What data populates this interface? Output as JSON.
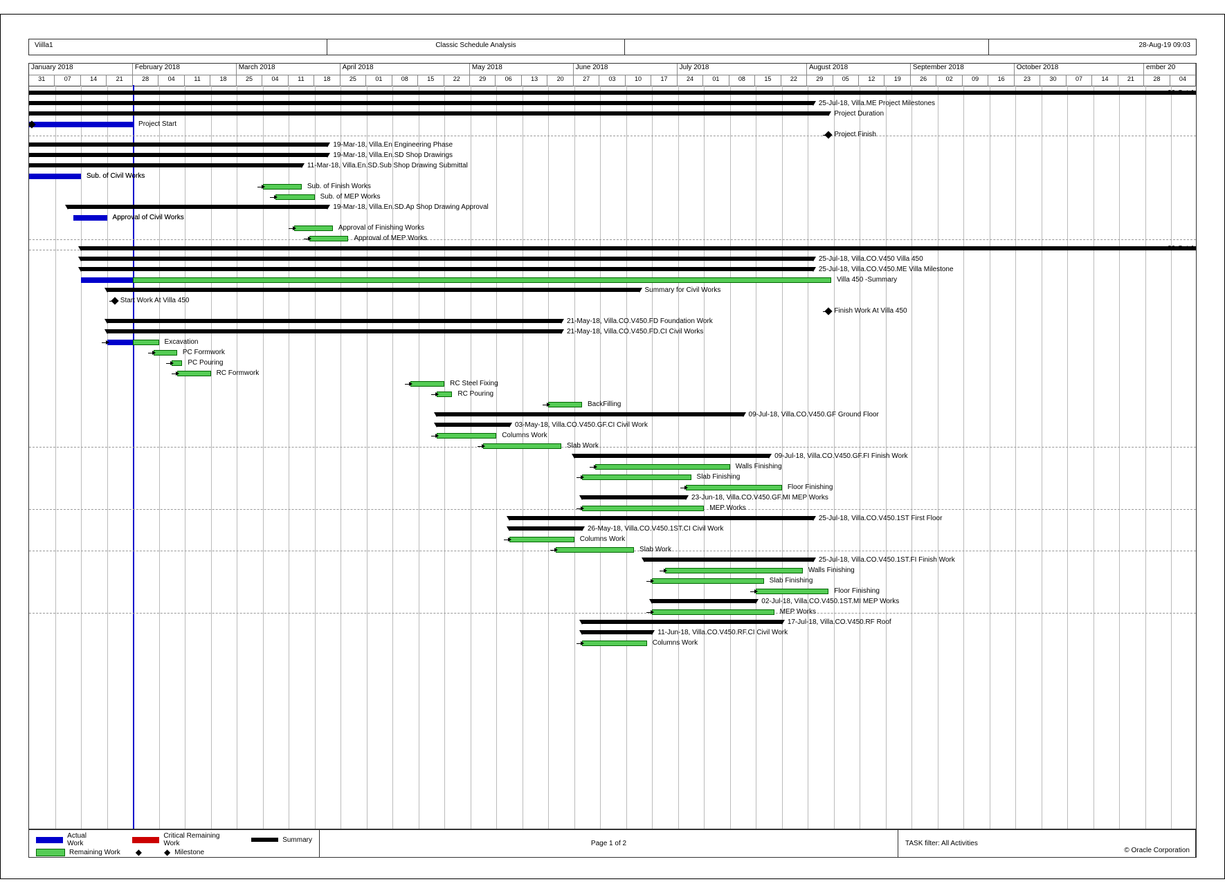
{
  "header": {
    "left": "Viilla1",
    "center": "Classic Schedule Analysis",
    "right": "28-Aug-19 09:03"
  },
  "footer": {
    "legend": {
      "actual": "Actual Work",
      "remaining": "Remaining Work",
      "critical": "Critical Remaining Work",
      "milestone": "Milestone",
      "summary": "Summary"
    },
    "page": "Page 1 of 2",
    "filter": "TASK filter: All Activities",
    "copyright": "© Oracle Corporation"
  },
  "colors": {
    "actual": "#0000cc",
    "remaining": "#55cc55",
    "critical": "#cc0000",
    "summary": "#000000",
    "grid": "#bbbbbb",
    "dash": "#999999",
    "status_line": "#0000cc",
    "border": "#333333",
    "bg": "#ffffff"
  },
  "timeline": {
    "start_week": 0,
    "total_weeks": 45,
    "status_week": 4,
    "months": [
      {
        "label": "January 2018",
        "weeks": 4
      },
      {
        "label": "February 2018",
        "weeks": 4
      },
      {
        "label": "March 2018",
        "weeks": 4
      },
      {
        "label": "April 2018",
        "weeks": 5
      },
      {
        "label": "May 2018",
        "weeks": 4
      },
      {
        "label": "June 2018",
        "weeks": 4
      },
      {
        "label": "July 2018",
        "weeks": 5
      },
      {
        "label": "August 2018",
        "weeks": 4
      },
      {
        "label": "September 2018",
        "weeks": 4
      },
      {
        "label": "October 2018",
        "weeks": 5
      },
      {
        "label": "ember 20",
        "weeks": 2
      }
    ],
    "days": [
      "31",
      "07",
      "14",
      "21",
      "28",
      "04",
      "11",
      "18",
      "25",
      "04",
      "11",
      "18",
      "25",
      "01",
      "08",
      "15",
      "22",
      "29",
      "06",
      "13",
      "20",
      "27",
      "03",
      "10",
      "17",
      "24",
      "01",
      "08",
      "15",
      "22",
      "29",
      "05",
      "12",
      "19",
      "26",
      "02",
      "09",
      "16",
      "23",
      "30",
      "07",
      "14",
      "21",
      "28",
      "04"
    ]
  },
  "tasks": [
    {
      "row": 0,
      "type": "summary",
      "start": 0,
      "end": 45,
      "dashed": true,
      "label_right": "30-Oct-1"
    },
    {
      "row": 1,
      "type": "summary",
      "start": 0,
      "end": 30.2,
      "label": "25-Jul-18, Villa.ME  Project Milestones"
    },
    {
      "row": 2,
      "type": "summary",
      "start": 0,
      "end": 30.8,
      "label": "Project Duration"
    },
    {
      "row": 3,
      "type": "actual",
      "start": 0,
      "end": 4,
      "label": "Project Start",
      "has_link_from": true,
      "ms_at": 0.1
    },
    {
      "row": 4,
      "type": "milestone",
      "start": 30.8,
      "label": "Project Finish",
      "dashed": true,
      "has_link": true
    },
    {
      "row": 5,
      "type": "summary",
      "start": 0,
      "end": 11.5,
      "label": "19-Mar-18, Villa.En  Engineering Phase"
    },
    {
      "row": 6,
      "type": "summary",
      "start": 0,
      "end": 11.5,
      "label": "19-Mar-18, Villa.En.SD  Shop Drawings"
    },
    {
      "row": 7,
      "type": "summary",
      "start": 0,
      "end": 10.5,
      "label": "11-Mar-18, Villa.En.SD.Sub  Shop Drawing Submittal"
    },
    {
      "row": 8,
      "type": "actual",
      "start": 0,
      "end": 2,
      "label": "Sub. of Civil Works",
      "hdr": true
    },
    {
      "row": 9,
      "type": "remaining",
      "start": 9,
      "end": 10.5,
      "label": "Sub. of Finish Works",
      "has_link": true
    },
    {
      "row": 10,
      "type": "remaining",
      "start": 9.5,
      "end": 11,
      "label": "Sub. of MEP Works",
      "has_link": true
    },
    {
      "row": 11,
      "type": "summary",
      "start": 1.5,
      "end": 11.5,
      "label": "19-Mar-18, Villa.En.SD.Ap  Shop Drawing Approval"
    },
    {
      "row": 12,
      "type": "actual",
      "start": 1.7,
      "end": 3,
      "label": "Approval of Civil Works",
      "hdr": true
    },
    {
      "row": 13,
      "type": "remaining",
      "start": 10.2,
      "end": 11.7,
      "label": "Approval of Finishing Works",
      "has_link": true
    },
    {
      "row": 14,
      "type": "remaining",
      "start": 10.8,
      "end": 12.3,
      "label": "Approval of MEP Works",
      "dashed": true,
      "has_link": true
    },
    {
      "row": 15,
      "type": "summary",
      "start": 2,
      "end": 45,
      "dashed": true,
      "label_right": "30-Oct-1"
    },
    {
      "row": 16,
      "type": "summary",
      "start": 2,
      "end": 30.2,
      "label": "25-Jul-18, Villa.CO.V450  Villa 450"
    },
    {
      "row": 17,
      "type": "summary",
      "start": 2,
      "end": 30.2,
      "label": "25-Jul-18, Villa.CO.V450.ME  Villa Milestone"
    },
    {
      "row": 18,
      "type": "remaining",
      "start": 4,
      "end": 30.9,
      "label": "Villa 450 -Summary",
      "actual_start": 2,
      "actual_end": 4
    },
    {
      "row": 19,
      "type": "summary",
      "start": 3,
      "end": 23.5,
      "label": "Summary for Civil Works"
    },
    {
      "row": 20,
      "type": "milestone",
      "start": 3.3,
      "label": "Start Work At Villa 450",
      "has_link": true
    },
    {
      "row": 21,
      "type": "milestone",
      "start": 30.8,
      "label": "Finish Work At Villa 450",
      "has_link": true
    },
    {
      "row": 22,
      "type": "summary",
      "start": 3,
      "end": 20.5,
      "label": "21-May-18, Villa.CO.V450.FD  Foundation Work"
    },
    {
      "row": 23,
      "type": "summary",
      "start": 3,
      "end": 20.5,
      "label": "21-May-18, Villa.CO.V450.FD.CI  Civil Works"
    },
    {
      "row": 24,
      "type": "remaining",
      "start": 4,
      "end": 5,
      "label": "Excavation",
      "actual_start": 3,
      "actual_end": 4,
      "has_link": true
    },
    {
      "row": 25,
      "type": "remaining",
      "start": 4.8,
      "end": 5.7,
      "label": "PC Formwork",
      "has_link": true
    },
    {
      "row": 26,
      "type": "remaining",
      "start": 5.5,
      "end": 5.9,
      "label": "PC Pouring",
      "has_link": true
    },
    {
      "row": 27,
      "type": "remaining",
      "start": 5.7,
      "end": 7,
      "label": "RC Formwork",
      "has_link": true
    },
    {
      "row": 28,
      "type": "remaining",
      "start": 14.7,
      "end": 16,
      "label": "RC Steel Fixing",
      "has_link": true
    },
    {
      "row": 29,
      "type": "remaining",
      "start": 15.7,
      "end": 16.3,
      "label": "RC Pouring",
      "has_link": true
    },
    {
      "row": 30,
      "type": "remaining",
      "start": 20,
      "end": 21.3,
      "label": "BackFilling",
      "has_link": true
    },
    {
      "row": 31,
      "type": "summary",
      "start": 15.7,
      "end": 27.5,
      "label": "09-Jul-18, Villa.CO.V450.GF  Ground Floor"
    },
    {
      "row": 32,
      "type": "summary",
      "start": 15.7,
      "end": 18.5,
      "label": "03-May-18, Villa.CO.V450.GF.CI  Civil Work"
    },
    {
      "row": 33,
      "type": "remaining",
      "start": 15.7,
      "end": 18,
      "label": "Columns Work",
      "has_link": true
    },
    {
      "row": 34,
      "type": "remaining",
      "start": 17.5,
      "end": 20.5,
      "label": "Slab Work",
      "dashed": true,
      "has_link": true
    },
    {
      "row": 35,
      "type": "summary",
      "start": 21,
      "end": 28.5,
      "label": "09-Jul-18, Villa.CO.V450.GF.FI  Finish Work"
    },
    {
      "row": 36,
      "type": "remaining",
      "start": 21.8,
      "end": 27,
      "label": "Walls Finishing",
      "has_link": true
    },
    {
      "row": 37,
      "type": "remaining",
      "start": 21.3,
      "end": 25.5,
      "label": "Slab Finishing",
      "has_link": true
    },
    {
      "row": 38,
      "type": "remaining",
      "start": 25.3,
      "end": 29,
      "label": "Floor Finishing",
      "has_link": true
    },
    {
      "row": 39,
      "type": "summary",
      "start": 21.3,
      "end": 25.3,
      "label": "23-Jun-18, Villa.CO.V450.GF.MI  MEP Works"
    },
    {
      "row": 40,
      "type": "remaining",
      "start": 21.3,
      "end": 26,
      "label": "MEP Works",
      "dashed": true,
      "has_link": true
    },
    {
      "row": 41,
      "type": "summary",
      "start": 18.5,
      "end": 30.2,
      "label": "25-Jul-18, Villa.CO.V450.1ST  First Floor"
    },
    {
      "row": 42,
      "type": "summary",
      "start": 18.5,
      "end": 21.3,
      "label": "26-May-18, Villa.CO.V450.1ST.CI  Civil Work"
    },
    {
      "row": 43,
      "type": "remaining",
      "start": 18.5,
      "end": 21,
      "label": "Columns Work",
      "has_link": true
    },
    {
      "row": 44,
      "type": "remaining",
      "start": 20.3,
      "end": 23.3,
      "label": "Slab Work",
      "dashed": true,
      "has_link": true
    },
    {
      "row": 45,
      "type": "summary",
      "start": 23.7,
      "end": 30.2,
      "label": "25-Jul-18, Villa.CO.V450.1ST.FI  Finish Work"
    },
    {
      "row": 46,
      "type": "remaining",
      "start": 24.5,
      "end": 29.8,
      "label": "Walls Finishing",
      "has_link": true
    },
    {
      "row": 47,
      "type": "remaining",
      "start": 24,
      "end": 28.3,
      "label": "Slab Finishing",
      "has_link": true
    },
    {
      "row": 48,
      "type": "remaining",
      "start": 28,
      "end": 30.8,
      "label": "Floor Finishing",
      "has_link": true
    },
    {
      "row": 49,
      "type": "summary",
      "start": 24,
      "end": 28,
      "label": "02-Jul-18, Villa.CO.V450.1ST.MI  MEP Works"
    },
    {
      "row": 50,
      "type": "remaining",
      "start": 24,
      "end": 28.7,
      "label": "MEP Works",
      "dashed": true,
      "has_link": true
    },
    {
      "row": 51,
      "type": "summary",
      "start": 21.3,
      "end": 29,
      "label": "17-Jul-18, Villa.CO.V450.RF  Roof"
    },
    {
      "row": 52,
      "type": "summary",
      "start": 21.3,
      "end": 24,
      "label": "11-Jun-18, Villa.CO.V450.RF.CI  Civil Work"
    },
    {
      "row": 53,
      "type": "remaining",
      "start": 21.3,
      "end": 23.8,
      "label": "Columns Work",
      "has_link": true
    }
  ]
}
